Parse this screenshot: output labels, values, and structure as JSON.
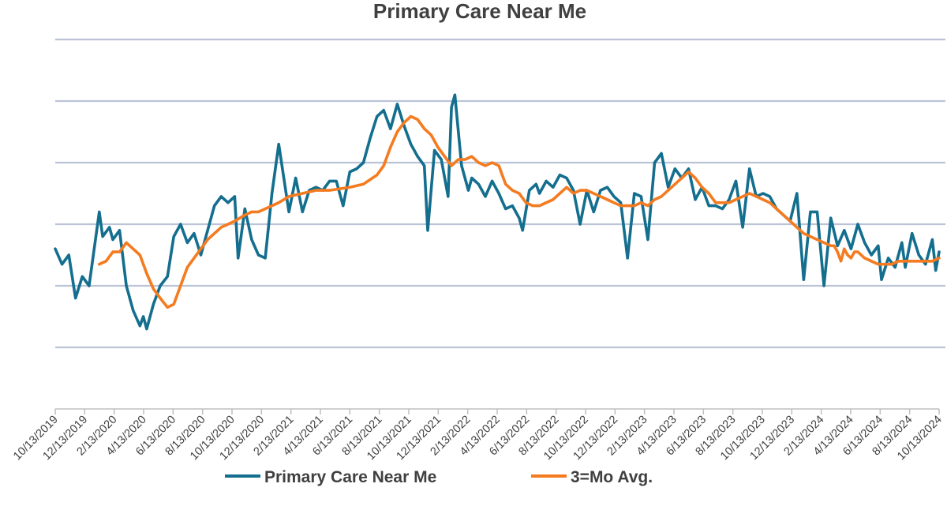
{
  "chart_data": {
    "type": "line",
    "title": "Primary Care Near Me",
    "xlabel": "",
    "ylabel": "",
    "ylim": [
      0,
      6
    ],
    "grid": true,
    "legend_position": "bottom",
    "x_tick_labels": [
      "10/13/2019",
      "12/13/2019",
      "2/13/2020",
      "4/13/2020",
      "6/13/2020",
      "8/13/2020",
      "10/13/2020",
      "12/13/2020",
      "2/13/2021",
      "4/13/2021",
      "6/13/2021",
      "8/13/2021",
      "10/13/2021",
      "12/13/2021",
      "2/13/2022",
      "4/13/2022",
      "6/13/2022",
      "8/13/2022",
      "10/13/2022",
      "12/13/2022",
      "2/13/2023",
      "4/13/2023",
      "6/13/2023",
      "8/13/2023",
      "10/13/2023",
      "12/13/2023",
      "2/13/2024",
      "4/13/2024",
      "6/13/2024",
      "8/13/2024",
      "10/13/2024"
    ],
    "series": [
      {
        "name": "Primary Care Near Me",
        "color": "#146e8e",
        "points": [
          [
            "2019-10-13",
            2.6
          ],
          [
            "2019-10-27",
            2.35
          ],
          [
            "2019-11-10",
            2.5
          ],
          [
            "2019-11-24",
            1.8
          ],
          [
            "2019-12-08",
            2.15
          ],
          [
            "2019-12-22",
            2.0
          ],
          [
            "2020-01-05",
            2.8
          ],
          [
            "2020-01-12",
            3.2
          ],
          [
            "2020-01-19",
            2.8
          ],
          [
            "2020-02-02",
            2.95
          ],
          [
            "2020-02-09",
            2.75
          ],
          [
            "2020-02-23",
            2.9
          ],
          [
            "2020-03-08",
            2.0
          ],
          [
            "2020-03-22",
            1.6
          ],
          [
            "2020-04-05",
            1.35
          ],
          [
            "2020-04-12",
            1.5
          ],
          [
            "2020-04-19",
            1.3
          ],
          [
            "2020-05-03",
            1.7
          ],
          [
            "2020-05-17",
            2.0
          ],
          [
            "2020-06-01",
            2.15
          ],
          [
            "2020-06-14",
            2.8
          ],
          [
            "2020-06-28",
            3.0
          ],
          [
            "2020-07-12",
            2.7
          ],
          [
            "2020-07-26",
            2.85
          ],
          [
            "2020-08-09",
            2.5
          ],
          [
            "2020-08-23",
            2.9
          ],
          [
            "2020-09-06",
            3.3
          ],
          [
            "2020-09-20",
            3.45
          ],
          [
            "2020-10-04",
            3.35
          ],
          [
            "2020-10-18",
            3.45
          ],
          [
            "2020-10-25",
            2.45
          ],
          [
            "2020-11-08",
            3.25
          ],
          [
            "2020-11-22",
            2.75
          ],
          [
            "2020-12-06",
            2.5
          ],
          [
            "2020-12-20",
            2.45
          ],
          [
            "2021-01-03",
            3.5
          ],
          [
            "2021-01-17",
            4.3
          ],
          [
            "2021-02-07",
            3.2
          ],
          [
            "2021-02-21",
            3.75
          ],
          [
            "2021-03-07",
            3.2
          ],
          [
            "2021-03-21",
            3.55
          ],
          [
            "2021-04-04",
            3.6
          ],
          [
            "2021-04-18",
            3.55
          ],
          [
            "2021-05-02",
            3.7
          ],
          [
            "2021-05-16",
            3.7
          ],
          [
            "2021-05-30",
            3.3
          ],
          [
            "2021-06-13",
            3.85
          ],
          [
            "2021-06-27",
            3.9
          ],
          [
            "2021-07-11",
            4.0
          ],
          [
            "2021-07-25",
            4.4
          ],
          [
            "2021-08-08",
            4.75
          ],
          [
            "2021-08-22",
            4.85
          ],
          [
            "2021-09-05",
            4.55
          ],
          [
            "2021-09-19",
            4.95
          ],
          [
            "2021-10-03",
            4.6
          ],
          [
            "2021-10-17",
            4.3
          ],
          [
            "2021-10-31",
            4.1
          ],
          [
            "2021-11-14",
            3.95
          ],
          [
            "2021-11-21",
            2.9
          ],
          [
            "2021-12-05",
            4.2
          ],
          [
            "2021-12-19",
            4.05
          ],
          [
            "2022-01-02",
            3.45
          ],
          [
            "2022-01-09",
            4.9
          ],
          [
            "2022-01-16",
            5.1
          ],
          [
            "2022-01-30",
            3.95
          ],
          [
            "2022-02-13",
            3.55
          ],
          [
            "2022-02-20",
            3.75
          ],
          [
            "2022-03-06",
            3.65
          ],
          [
            "2022-03-20",
            3.45
          ],
          [
            "2022-04-03",
            3.7
          ],
          [
            "2022-04-17",
            3.5
          ],
          [
            "2022-05-01",
            3.25
          ],
          [
            "2022-05-15",
            3.3
          ],
          [
            "2022-05-29",
            3.1
          ],
          [
            "2022-06-05",
            2.9
          ],
          [
            "2022-06-19",
            3.55
          ],
          [
            "2022-07-03",
            3.65
          ],
          [
            "2022-07-10",
            3.5
          ],
          [
            "2022-07-24",
            3.7
          ],
          [
            "2022-08-07",
            3.6
          ],
          [
            "2022-08-21",
            3.8
          ],
          [
            "2022-09-04",
            3.75
          ],
          [
            "2022-09-18",
            3.55
          ],
          [
            "2022-10-02",
            3.0
          ],
          [
            "2022-10-16",
            3.55
          ],
          [
            "2022-10-30",
            3.2
          ],
          [
            "2022-11-13",
            3.55
          ],
          [
            "2022-11-27",
            3.6
          ],
          [
            "2022-12-11",
            3.45
          ],
          [
            "2022-12-25",
            3.35
          ],
          [
            "2023-01-08",
            2.45
          ],
          [
            "2023-01-22",
            3.5
          ],
          [
            "2023-02-05",
            3.45
          ],
          [
            "2023-02-19",
            2.75
          ],
          [
            "2023-03-05",
            4.0
          ],
          [
            "2023-03-19",
            4.15
          ],
          [
            "2023-04-02",
            3.6
          ],
          [
            "2023-04-16",
            3.9
          ],
          [
            "2023-04-30",
            3.75
          ],
          [
            "2023-05-14",
            3.9
          ],
          [
            "2023-05-28",
            3.4
          ],
          [
            "2023-06-11",
            3.6
          ],
          [
            "2023-06-25",
            3.3
          ],
          [
            "2023-07-09",
            3.3
          ],
          [
            "2023-07-23",
            3.25
          ],
          [
            "2023-08-06",
            3.4
          ],
          [
            "2023-08-20",
            3.7
          ],
          [
            "2023-09-03",
            2.95
          ],
          [
            "2023-09-17",
            3.9
          ],
          [
            "2023-10-01",
            3.45
          ],
          [
            "2023-10-15",
            3.5
          ],
          [
            "2023-10-29",
            3.45
          ],
          [
            "2023-11-12",
            3.25
          ],
          [
            "2023-11-26",
            3.15
          ],
          [
            "2023-12-10",
            3.05
          ],
          [
            "2023-12-24",
            3.5
          ],
          [
            "2024-01-07",
            2.1
          ],
          [
            "2024-01-21",
            3.2
          ],
          [
            "2024-02-04",
            3.2
          ],
          [
            "2024-02-18",
            2.0
          ],
          [
            "2024-03-03",
            3.1
          ],
          [
            "2024-03-17",
            2.65
          ],
          [
            "2024-03-31",
            2.9
          ],
          [
            "2024-04-14",
            2.6
          ],
          [
            "2024-04-28",
            3.0
          ],
          [
            "2024-05-12",
            2.7
          ],
          [
            "2024-05-26",
            2.5
          ],
          [
            "2024-06-09",
            2.65
          ],
          [
            "2024-06-16",
            2.1
          ],
          [
            "2024-06-30",
            2.45
          ],
          [
            "2024-07-14",
            2.3
          ],
          [
            "2024-07-28",
            2.7
          ],
          [
            "2024-08-04",
            2.3
          ],
          [
            "2024-08-18",
            2.85
          ],
          [
            "2024-09-01",
            2.5
          ],
          [
            "2024-09-15",
            2.35
          ],
          [
            "2024-09-29",
            2.75
          ],
          [
            "2024-10-06",
            2.25
          ],
          [
            "2024-10-13",
            2.55
          ]
        ]
      },
      {
        "name": "3=Mo Avg.",
        "color": "#f47b20",
        "points": [
          [
            "2020-01-12",
            2.35
          ],
          [
            "2020-01-26",
            2.4
          ],
          [
            "2020-02-09",
            2.55
          ],
          [
            "2020-02-23",
            2.55
          ],
          [
            "2020-03-08",
            2.7
          ],
          [
            "2020-03-22",
            2.6
          ],
          [
            "2020-04-05",
            2.5
          ],
          [
            "2020-04-19",
            2.2
          ],
          [
            "2020-05-03",
            1.95
          ],
          [
            "2020-05-17",
            1.8
          ],
          [
            "2020-06-01",
            1.65
          ],
          [
            "2020-06-14",
            1.7
          ],
          [
            "2020-06-28",
            2.0
          ],
          [
            "2020-07-12",
            2.3
          ],
          [
            "2020-07-26",
            2.45
          ],
          [
            "2020-08-09",
            2.6
          ],
          [
            "2020-08-23",
            2.75
          ],
          [
            "2020-09-06",
            2.85
          ],
          [
            "2020-09-20",
            2.95
          ],
          [
            "2020-10-04",
            3.0
          ],
          [
            "2020-10-18",
            3.05
          ],
          [
            "2020-11-08",
            3.15
          ],
          [
            "2020-11-22",
            3.2
          ],
          [
            "2020-12-06",
            3.2
          ],
          [
            "2020-12-20",
            3.25
          ],
          [
            "2021-01-17",
            3.35
          ],
          [
            "2021-02-07",
            3.45
          ],
          [
            "2021-03-07",
            3.5
          ],
          [
            "2021-04-04",
            3.55
          ],
          [
            "2021-05-02",
            3.55
          ],
          [
            "2021-06-13",
            3.6
          ],
          [
            "2021-07-11",
            3.65
          ],
          [
            "2021-08-08",
            3.8
          ],
          [
            "2021-08-22",
            3.95
          ],
          [
            "2021-09-05",
            4.25
          ],
          [
            "2021-09-19",
            4.5
          ],
          [
            "2021-10-03",
            4.65
          ],
          [
            "2021-10-17",
            4.75
          ],
          [
            "2021-10-31",
            4.7
          ],
          [
            "2021-11-14",
            4.55
          ],
          [
            "2021-11-28",
            4.45
          ],
          [
            "2021-12-12",
            4.25
          ],
          [
            "2021-12-26",
            4.1
          ],
          [
            "2022-01-09",
            3.95
          ],
          [
            "2022-01-23",
            4.05
          ],
          [
            "2022-02-06",
            4.05
          ],
          [
            "2022-02-20",
            4.1
          ],
          [
            "2022-03-06",
            4.0
          ],
          [
            "2022-03-20",
            3.95
          ],
          [
            "2022-04-03",
            4.0
          ],
          [
            "2022-04-17",
            3.95
          ],
          [
            "2022-05-01",
            3.65
          ],
          [
            "2022-05-15",
            3.55
          ],
          [
            "2022-05-29",
            3.5
          ],
          [
            "2022-06-12",
            3.35
          ],
          [
            "2022-06-26",
            3.3
          ],
          [
            "2022-07-10",
            3.3
          ],
          [
            "2022-07-24",
            3.35
          ],
          [
            "2022-08-07",
            3.4
          ],
          [
            "2022-08-21",
            3.5
          ],
          [
            "2022-09-04",
            3.6
          ],
          [
            "2022-09-18",
            3.5
          ],
          [
            "2022-10-02",
            3.55
          ],
          [
            "2022-10-16",
            3.55
          ],
          [
            "2022-10-30",
            3.5
          ],
          [
            "2022-11-13",
            3.45
          ],
          [
            "2022-11-27",
            3.4
          ],
          [
            "2022-12-11",
            3.35
          ],
          [
            "2022-12-25",
            3.3
          ],
          [
            "2023-01-08",
            3.3
          ],
          [
            "2023-01-22",
            3.3
          ],
          [
            "2023-02-05",
            3.35
          ],
          [
            "2023-02-19",
            3.3
          ],
          [
            "2023-03-05",
            3.4
          ],
          [
            "2023-03-19",
            3.45
          ],
          [
            "2023-04-02",
            3.55
          ],
          [
            "2023-04-16",
            3.65
          ],
          [
            "2023-04-30",
            3.75
          ],
          [
            "2023-05-14",
            3.85
          ],
          [
            "2023-05-28",
            3.75
          ],
          [
            "2023-06-11",
            3.6
          ],
          [
            "2023-06-25",
            3.5
          ],
          [
            "2023-07-09",
            3.35
          ],
          [
            "2023-07-23",
            3.35
          ],
          [
            "2023-08-06",
            3.35
          ],
          [
            "2023-08-20",
            3.4
          ],
          [
            "2023-09-03",
            3.45
          ],
          [
            "2023-09-17",
            3.5
          ],
          [
            "2023-10-01",
            3.45
          ],
          [
            "2023-10-15",
            3.4
          ],
          [
            "2023-10-29",
            3.35
          ],
          [
            "2023-11-12",
            3.25
          ],
          [
            "2023-11-26",
            3.15
          ],
          [
            "2023-12-10",
            3.05
          ],
          [
            "2023-12-24",
            2.95
          ],
          [
            "2024-01-07",
            2.85
          ],
          [
            "2024-01-21",
            2.8
          ],
          [
            "2024-02-04",
            2.75
          ],
          [
            "2024-02-18",
            2.7
          ],
          [
            "2024-03-03",
            2.65
          ],
          [
            "2024-03-10",
            2.65
          ],
          [
            "2024-03-17",
            2.55
          ],
          [
            "2024-03-24",
            2.4
          ],
          [
            "2024-03-31",
            2.6
          ],
          [
            "2024-04-07",
            2.5
          ],
          [
            "2024-04-14",
            2.45
          ],
          [
            "2024-04-21",
            2.55
          ],
          [
            "2024-04-28",
            2.55
          ],
          [
            "2024-05-12",
            2.45
          ],
          [
            "2024-05-26",
            2.4
          ],
          [
            "2024-06-09",
            2.35
          ],
          [
            "2024-06-23",
            2.35
          ],
          [
            "2024-07-07",
            2.35
          ],
          [
            "2024-07-21",
            2.4
          ],
          [
            "2024-08-04",
            2.4
          ],
          [
            "2024-08-18",
            2.4
          ],
          [
            "2024-09-01",
            2.4
          ],
          [
            "2024-09-15",
            2.4
          ],
          [
            "2024-09-29",
            2.4
          ],
          [
            "2024-10-13",
            2.45
          ]
        ]
      }
    ]
  }
}
